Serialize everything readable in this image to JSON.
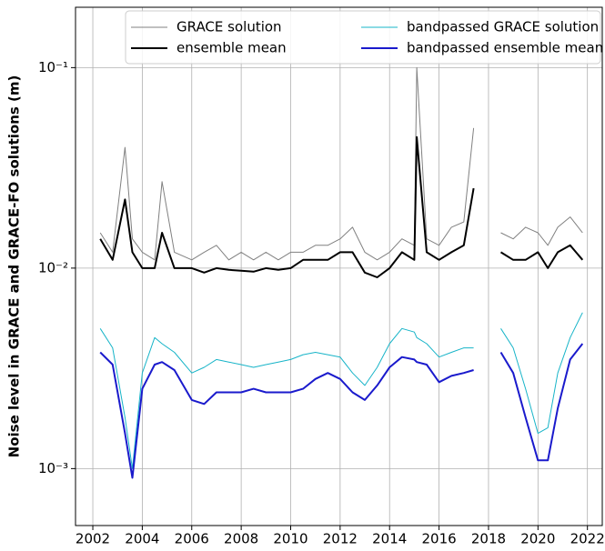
{
  "chart_data": {
    "type": "line",
    "ylabel": "Noise level in GRACE and GRACE-FO solutions (m)",
    "yscale": "log",
    "grid": true,
    "legend": "upper right",
    "xlim": [
      2001.3,
      2022.6
    ],
    "xticks": [
      2002,
      2004,
      2006,
      2008,
      2010,
      2012,
      2014,
      2016,
      2018,
      2020,
      2022
    ],
    "ylim": [
      0.00052,
      0.2
    ],
    "yticks": [
      {
        "value": 0.001,
        "label": "10⁻³"
      },
      {
        "value": 0.01,
        "label": "10⁻²"
      },
      {
        "value": 0.1,
        "label": "10⁻¹"
      }
    ],
    "x": [
      2002.3,
      2002.8,
      2003.3,
      2003.6,
      2004.0,
      2004.5,
      2004.8,
      2005.3,
      2006.0,
      2006.5,
      2007.0,
      2007.5,
      2008.0,
      2008.5,
      2009.0,
      2009.5,
      2010.0,
      2010.5,
      2011.0,
      2011.5,
      2012.0,
      2012.5,
      2013.0,
      2013.5,
      2014.0,
      2014.5,
      2015.0,
      2015.1,
      2015.5,
      2016.0,
      2016.5,
      2017.0,
      2017.4,
      2017.9,
      2018.5,
      2019.0,
      2019.5,
      2020.0,
      2020.4,
      2020.8,
      2021.3,
      2021.8
    ],
    "series": [
      {
        "name": "GRACE solution",
        "color": "#808080",
        "linewidth": 1,
        "values": [
          0.015,
          0.012,
          0.04,
          0.014,
          0.012,
          0.011,
          0.027,
          0.012,
          0.011,
          0.012,
          0.013,
          0.011,
          0.012,
          0.011,
          0.012,
          0.011,
          0.012,
          0.012,
          0.013,
          0.013,
          0.014,
          0.016,
          0.012,
          0.011,
          0.012,
          0.014,
          0.013,
          0.1,
          0.014,
          0.013,
          0.016,
          0.017,
          0.05,
          null,
          0.015,
          0.014,
          0.016,
          0.015,
          0.013,
          0.016,
          0.018,
          0.015
        ]
      },
      {
        "name": "ensemble mean",
        "color": "#000000",
        "linewidth": 2,
        "values": [
          0.014,
          0.011,
          0.022,
          0.012,
          0.01,
          0.01,
          0.015,
          0.01,
          0.01,
          0.0095,
          0.01,
          0.0098,
          0.0097,
          0.0096,
          0.01,
          0.0098,
          0.01,
          0.011,
          0.011,
          0.011,
          0.012,
          0.012,
          0.0095,
          0.009,
          0.01,
          0.012,
          0.011,
          0.045,
          0.012,
          0.011,
          0.012,
          0.013,
          0.025,
          null,
          0.012,
          0.011,
          0.011,
          0.012,
          0.01,
          0.012,
          0.013,
          0.011
        ]
      },
      {
        "name": "bandpassed GRACE solution",
        "color": "#17b4c8",
        "linewidth": 1,
        "values": [
          0.005,
          0.004,
          0.0018,
          0.001,
          0.003,
          0.0045,
          0.0042,
          0.0038,
          0.003,
          0.0032,
          0.0035,
          0.0034,
          0.0033,
          0.0032,
          0.0033,
          0.0034,
          0.0035,
          0.0037,
          0.0038,
          0.0037,
          0.0036,
          0.003,
          0.0026,
          0.0032,
          0.0042,
          0.005,
          0.0048,
          0.0045,
          0.0042,
          0.0036,
          0.0038,
          0.004,
          0.004,
          null,
          0.005,
          0.004,
          0.0025,
          0.0015,
          0.0016,
          0.003,
          0.0045,
          0.006
        ]
      },
      {
        "name": "bandpassed ensemble mean",
        "color": "#1a1acc",
        "linewidth": 2,
        "values": [
          0.0038,
          0.0033,
          0.0015,
          0.0009,
          0.0025,
          0.0033,
          0.0034,
          0.0031,
          0.0022,
          0.0021,
          0.0024,
          0.0024,
          0.0024,
          0.0025,
          0.0024,
          0.0024,
          0.0024,
          0.0025,
          0.0028,
          0.003,
          0.0028,
          0.0024,
          0.0022,
          0.0026,
          0.0032,
          0.0036,
          0.0035,
          0.0034,
          0.0033,
          0.0027,
          0.0029,
          0.003,
          0.0031,
          null,
          0.0038,
          0.003,
          0.0018,
          0.0011,
          0.0011,
          0.002,
          0.0035,
          0.0042
        ]
      }
    ]
  }
}
